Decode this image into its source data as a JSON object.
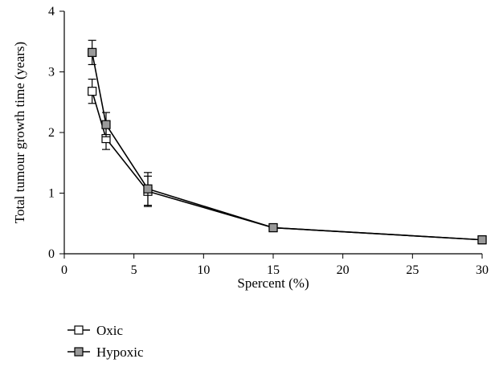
{
  "chart_data": {
    "type": "line",
    "title": "",
    "xlabel": "Spercent (%)",
    "ylabel": "Total tumour growth time (years)",
    "xlim": [
      0,
      30
    ],
    "ylim": [
      0,
      4
    ],
    "xticks": [
      0,
      5,
      10,
      15,
      20,
      25,
      30
    ],
    "yticks": [
      0,
      1,
      2,
      3,
      4
    ],
    "grid": false,
    "legend_position": "bottom-left",
    "series": [
      {
        "name": "Oxic",
        "marker": "open-square",
        "color": "#ffffff",
        "x": [
          2,
          3,
          6,
          15,
          30
        ],
        "y": [
          2.68,
          1.9,
          1.03,
          0.43,
          0.23
        ],
        "error": [
          0.2,
          0.18,
          0.25,
          0.0,
          0.0
        ]
      },
      {
        "name": "Hypoxic",
        "marker": "filled-square",
        "color": "#999999",
        "x": [
          2,
          3,
          6,
          15,
          30
        ],
        "y": [
          3.32,
          2.13,
          1.07,
          0.43,
          0.23
        ],
        "error": [
          0.2,
          0.2,
          0.27,
          0.0,
          0.0
        ]
      }
    ]
  }
}
